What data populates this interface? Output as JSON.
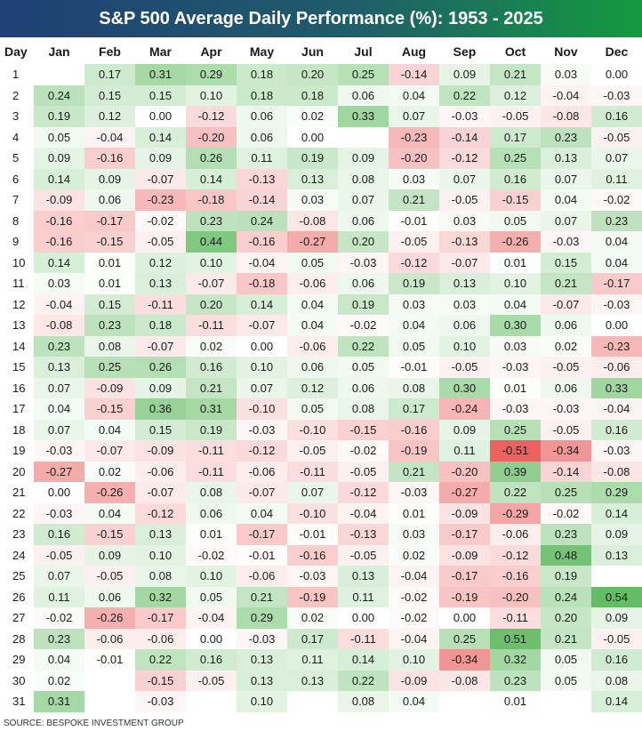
{
  "title": "S&P 500 Average Daily Performance (%): 1953 - 2025",
  "source": "SOURCE: BESPOKE INVESTMENT GROUP",
  "colors": {
    "positive": "#5cb85c",
    "negative": "#e8504f",
    "title_left": "#1f3f75",
    "title_right": "#139a3f"
  },
  "chart_data": {
    "type": "heatmap",
    "title": "S&P 500 Average Daily Performance (%): 1953 - 2025",
    "row_header": "Day",
    "columns": [
      "Jan",
      "Feb",
      "Mar",
      "Apr",
      "May",
      "Jun",
      "Jul",
      "Aug",
      "Sep",
      "Oct",
      "Nov",
      "Dec"
    ],
    "rows": [
      {
        "day": "1",
        "values": [
          null,
          "0.17",
          "0.31",
          "0.29",
          "0.18",
          "0.20",
          "0.25",
          "-0.14",
          "0.09",
          "0.21",
          "0.03",
          "0.00"
        ]
      },
      {
        "day": "2",
        "values": [
          "0.24",
          "0.15",
          "0.15",
          "0.10",
          "0.18",
          "0.18",
          "0.06",
          "0.04",
          "0.22",
          "0.12",
          "-0.04",
          "-0.03"
        ]
      },
      {
        "day": "3",
        "values": [
          "0.19",
          "0.12",
          "0.00",
          "-0.12",
          "0.06",
          "0.02",
          "0.33",
          "0.07",
          "-0.03",
          "-0.05",
          "-0.08",
          "0.16"
        ]
      },
      {
        "day": "4",
        "values": [
          "0.05",
          "-0.04",
          "0.14",
          "-0.20",
          "0.06",
          "0.00",
          null,
          "-0.23",
          "-0.14",
          "0.17",
          "0.23",
          "-0.05"
        ]
      },
      {
        "day": "5",
        "values": [
          "0.09",
          "-0.16",
          "0.09",
          "0.26",
          "0.11",
          "0.19",
          "0.09",
          "-0.20",
          "-0.12",
          "0.25",
          "0.13",
          "0.07"
        ]
      },
      {
        "day": "6",
        "values": [
          "0.14",
          "0.09",
          "-0.07",
          "0.14",
          "-0.13",
          "0.13",
          "0.08",
          "0.03",
          "0.07",
          "0.16",
          "0.07",
          "0.11"
        ]
      },
      {
        "day": "7",
        "values": [
          "-0.09",
          "0.06",
          "-0.23",
          "-0.18",
          "-0.14",
          "0.03",
          "0.07",
          "0.21",
          "-0.05",
          "-0.15",
          "0.04",
          "-0.02"
        ]
      },
      {
        "day": "8",
        "values": [
          "-0.16",
          "-0.17",
          "-0.02",
          "0.23",
          "0.24",
          "-0.08",
          "0.06",
          "-0.01",
          "0.03",
          "0.05",
          "0.07",
          "0.23"
        ]
      },
      {
        "day": "9",
        "values": [
          "-0.16",
          "-0.15",
          "-0.05",
          "0.44",
          "-0.16",
          "-0.27",
          "0.20",
          "-0.05",
          "-0.13",
          "-0.26",
          "-0.03",
          "0.04"
        ]
      },
      {
        "day": "10",
        "values": [
          "0.14",
          "0.01",
          "0.12",
          "0.10",
          "-0.04",
          "0.05",
          "-0.03",
          "-0.12",
          "-0.07",
          "0.01",
          "0.15",
          "0.04"
        ]
      },
      {
        "day": "11",
        "values": [
          "0.03",
          "0.01",
          "0.13",
          "-0.07",
          "-0.18",
          "-0.06",
          "0.06",
          "0.19",
          "0.13",
          "0.10",
          "0.21",
          "-0.17"
        ]
      },
      {
        "day": "12",
        "values": [
          "-0.04",
          "0.15",
          "-0.11",
          "0.20",
          "0.14",
          "0.04",
          "0.19",
          "0.03",
          "0.03",
          "0.04",
          "-0.07",
          "-0.03"
        ]
      },
      {
        "day": "13",
        "values": [
          "-0.08",
          "0.23",
          "0.18",
          "-0.11",
          "-0.07",
          "0.04",
          "-0.02",
          "0.04",
          "0.06",
          "0.30",
          "0.06",
          "0.00"
        ]
      },
      {
        "day": "14",
        "values": [
          "0.23",
          "0.08",
          "-0.07",
          "0.02",
          "0.00",
          "-0.06",
          "0.22",
          "0.05",
          "0.10",
          "0.03",
          "0.02",
          "-0.23"
        ]
      },
      {
        "day": "15",
        "values": [
          "0.13",
          "0.25",
          "0.26",
          "0.16",
          "0.10",
          "0.06",
          "0.05",
          "-0.01",
          "-0.05",
          "-0.03",
          "-0.05",
          "-0.06"
        ]
      },
      {
        "day": "16",
        "values": [
          "0.07",
          "-0.09",
          "0.09",
          "0.21",
          "0.07",
          "0.12",
          "0.06",
          "0.08",
          "0.30",
          "0.01",
          "0.06",
          "0.33"
        ]
      },
      {
        "day": "17",
        "values": [
          "0.04",
          "-0.15",
          "0.36",
          "0.31",
          "-0.10",
          "0.05",
          "0.08",
          "0.17",
          "-0.24",
          "-0.03",
          "-0.03",
          "-0.04"
        ]
      },
      {
        "day": "18",
        "values": [
          "0.07",
          "0.04",
          "0.15",
          "0.19",
          "-0.03",
          "-0.10",
          "-0.15",
          "-0.16",
          "0.09",
          "0.25",
          "-0.05",
          "0.16"
        ]
      },
      {
        "day": "19",
        "values": [
          "-0.03",
          "-0.07",
          "-0.09",
          "-0.11",
          "-0.12",
          "-0.05",
          "-0.02",
          "-0.19",
          "0.11",
          "-0.51",
          "-0.34",
          "-0.03"
        ]
      },
      {
        "day": "20",
        "values": [
          "-0.27",
          "0.02",
          "-0.06",
          "-0.11",
          "-0.06",
          "-0.11",
          "-0.05",
          "0.21",
          "-0.20",
          "0.39",
          "-0.14",
          "-0.08"
        ]
      },
      {
        "day": "21",
        "values": [
          "0.00",
          "-0.26",
          "-0.07",
          "0.08",
          "-0.07",
          "0.07",
          "-0.12",
          "-0.03",
          "-0.27",
          "0.22",
          "0.25",
          "0.29"
        ]
      },
      {
        "day": "22",
        "values": [
          "-0.03",
          "0.04",
          "-0.12",
          "0.06",
          "0.04",
          "-0.10",
          "-0.04",
          "0.01",
          "-0.09",
          "-0.29",
          "-0.02",
          "0.14"
        ]
      },
      {
        "day": "23",
        "values": [
          "0.16",
          "-0.15",
          "0.13",
          "0.01",
          "-0.17",
          "-0.01",
          "-0.13",
          "0.03",
          "-0.17",
          "-0.06",
          "0.23",
          "0.09"
        ]
      },
      {
        "day": "24",
        "values": [
          "-0.05",
          "0.09",
          "0.10",
          "-0.02",
          "-0.01",
          "-0.16",
          "-0.05",
          "0.02",
          "-0.09",
          "-0.12",
          "0.48",
          "0.13"
        ]
      },
      {
        "day": "25",
        "values": [
          "0.07",
          "-0.05",
          "0.08",
          "0.10",
          "-0.06",
          "-0.03",
          "0.13",
          "-0.04",
          "-0.17",
          "-0.16",
          "0.19",
          null
        ]
      },
      {
        "day": "26",
        "values": [
          "0.11",
          "0.06",
          "0.32",
          "0.05",
          "0.21",
          "-0.19",
          "0.11",
          "-0.02",
          "-0.19",
          "-0.20",
          "0.24",
          "0.54"
        ]
      },
      {
        "day": "27",
        "values": [
          "-0.02",
          "-0.26",
          "-0.17",
          "-0.04",
          "0.29",
          "0.02",
          "0.00",
          "-0.02",
          "0.00",
          "-0.11",
          "0.20",
          "0.09"
        ]
      },
      {
        "day": "28",
        "values": [
          "0.23",
          "-0.06",
          "-0.06",
          "0.00",
          "-0.03",
          "0.17",
          "-0.11",
          "-0.04",
          "0.25",
          "0.51",
          "0.21",
          "-0.05"
        ]
      },
      {
        "day": "29",
        "values": [
          "0.04",
          "-0.01",
          "0.22",
          "0.16",
          "0.13",
          "0.11",
          "0.14",
          "0.10",
          "-0.34",
          "0.32",
          "0.05",
          "0.16"
        ]
      },
      {
        "day": "30",
        "values": [
          "0.02",
          null,
          "-0.15",
          "-0.05",
          "0.13",
          "0.13",
          "0.22",
          "-0.09",
          "-0.08",
          "0.23",
          "0.05",
          "0.08"
        ]
      },
      {
        "day": "31",
        "values": [
          "0.31",
          null,
          "-0.03",
          null,
          "0.10",
          null,
          "0.08",
          "0.04",
          null,
          "0.01",
          null,
          "0.14"
        ]
      }
    ],
    "color_scale": {
      "min": -0.51,
      "max": 0.54,
      "center": 0
    },
    "grid": false,
    "legend": "none"
  }
}
